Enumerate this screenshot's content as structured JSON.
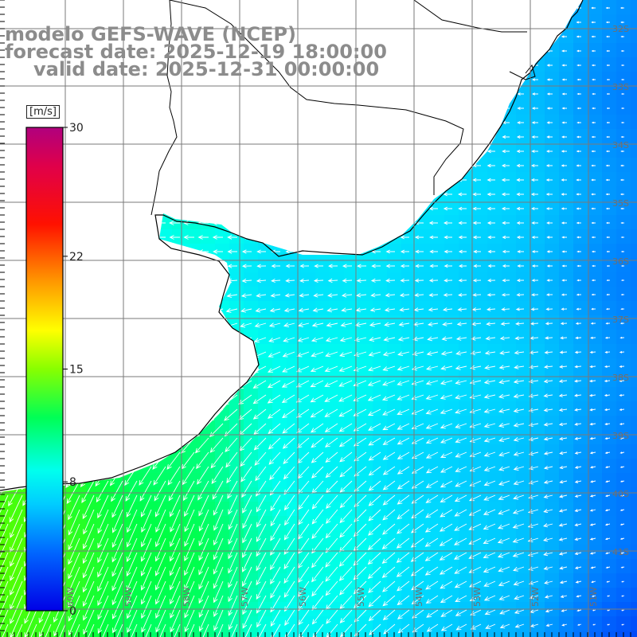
{
  "title": {
    "line1": "modelo GEFS-WAVE (NCEP)",
    "line2": "forecast date: 2025-12-19 18:00:00",
    "line3": "valid date: 2025-12-31 00:00:00"
  },
  "colorbar": {
    "unit": "[m/s]",
    "ticks": [
      {
        "label": "30",
        "value": 30
      },
      {
        "label": "22",
        "value": 22
      },
      {
        "label": "15",
        "value": 15
      },
      {
        "label": "8",
        "value": 8
      },
      {
        "label": "0",
        "value": 0
      }
    ],
    "range": [
      0,
      30
    ],
    "colors": [
      "#0000e6",
      "#00aaff",
      "#00ffee",
      "#00ff44",
      "#66ff00",
      "#ffff00",
      "#ff9900",
      "#ff2200",
      "#c8005a",
      "#b4007c"
    ]
  },
  "latitude_labels": [
    "32S",
    "33S",
    "34S",
    "35S",
    "36S",
    "37S",
    "38S",
    "39S",
    "40S",
    "41S"
  ],
  "longitude_labels": [
    "60W",
    "59W",
    "58W",
    "57W",
    "56W",
    "55W",
    "54W",
    "53W",
    "52W",
    "51W"
  ],
  "colors": {
    "land": "#ffffff",
    "coast": "#000000",
    "grid": "#7a7a7a",
    "arrow": "#ffffff",
    "title": "#8c8c8c"
  }
}
